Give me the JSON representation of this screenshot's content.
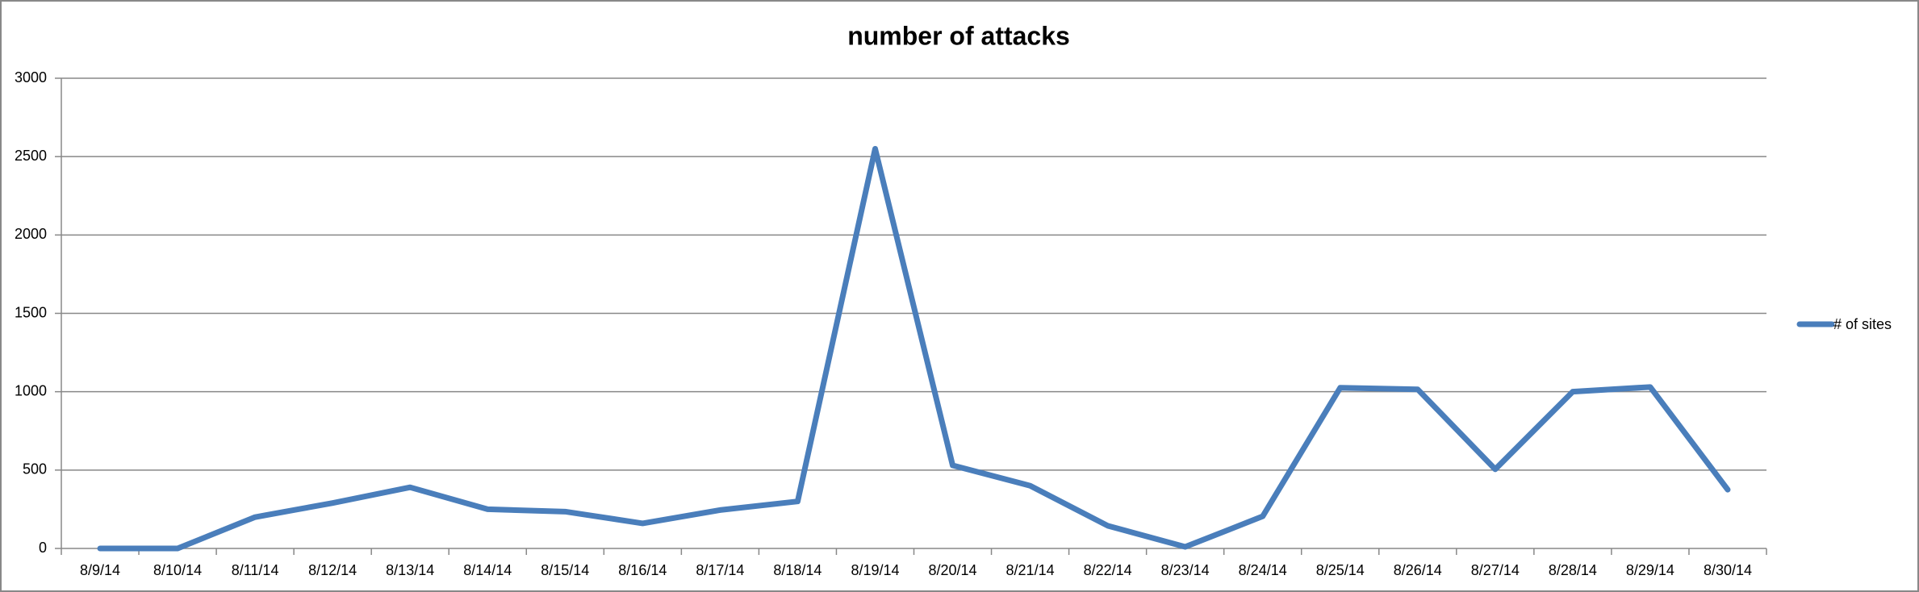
{
  "chart_data": {
    "type": "line",
    "title": "number of attacks",
    "categories": [
      "8/9/14",
      "8/10/14",
      "8/11/14",
      "8/12/14",
      "8/13/14",
      "8/14/14",
      "8/15/14",
      "8/16/14",
      "8/17/14",
      "8/18/14",
      "8/19/14",
      "8/20/14",
      "8/21/14",
      "8/22/14",
      "8/23/14",
      "8/24/14",
      "8/25/14",
      "8/26/14",
      "8/27/14",
      "8/28/14",
      "8/29/14",
      "8/30/14"
    ],
    "series": [
      {
        "name": "# of sites",
        "color": "#4a7ebb",
        "values": [
          0,
          0,
          200,
          290,
          390,
          250,
          235,
          160,
          245,
          300,
          2550,
          530,
          400,
          145,
          10,
          205,
          1025,
          1015,
          505,
          1000,
          1030,
          375
        ]
      }
    ],
    "ylim": [
      0,
      3000
    ],
    "yticks": [
      0,
      500,
      1000,
      1500,
      2000,
      2500,
      3000
    ],
    "grid": true,
    "legend": "right"
  }
}
